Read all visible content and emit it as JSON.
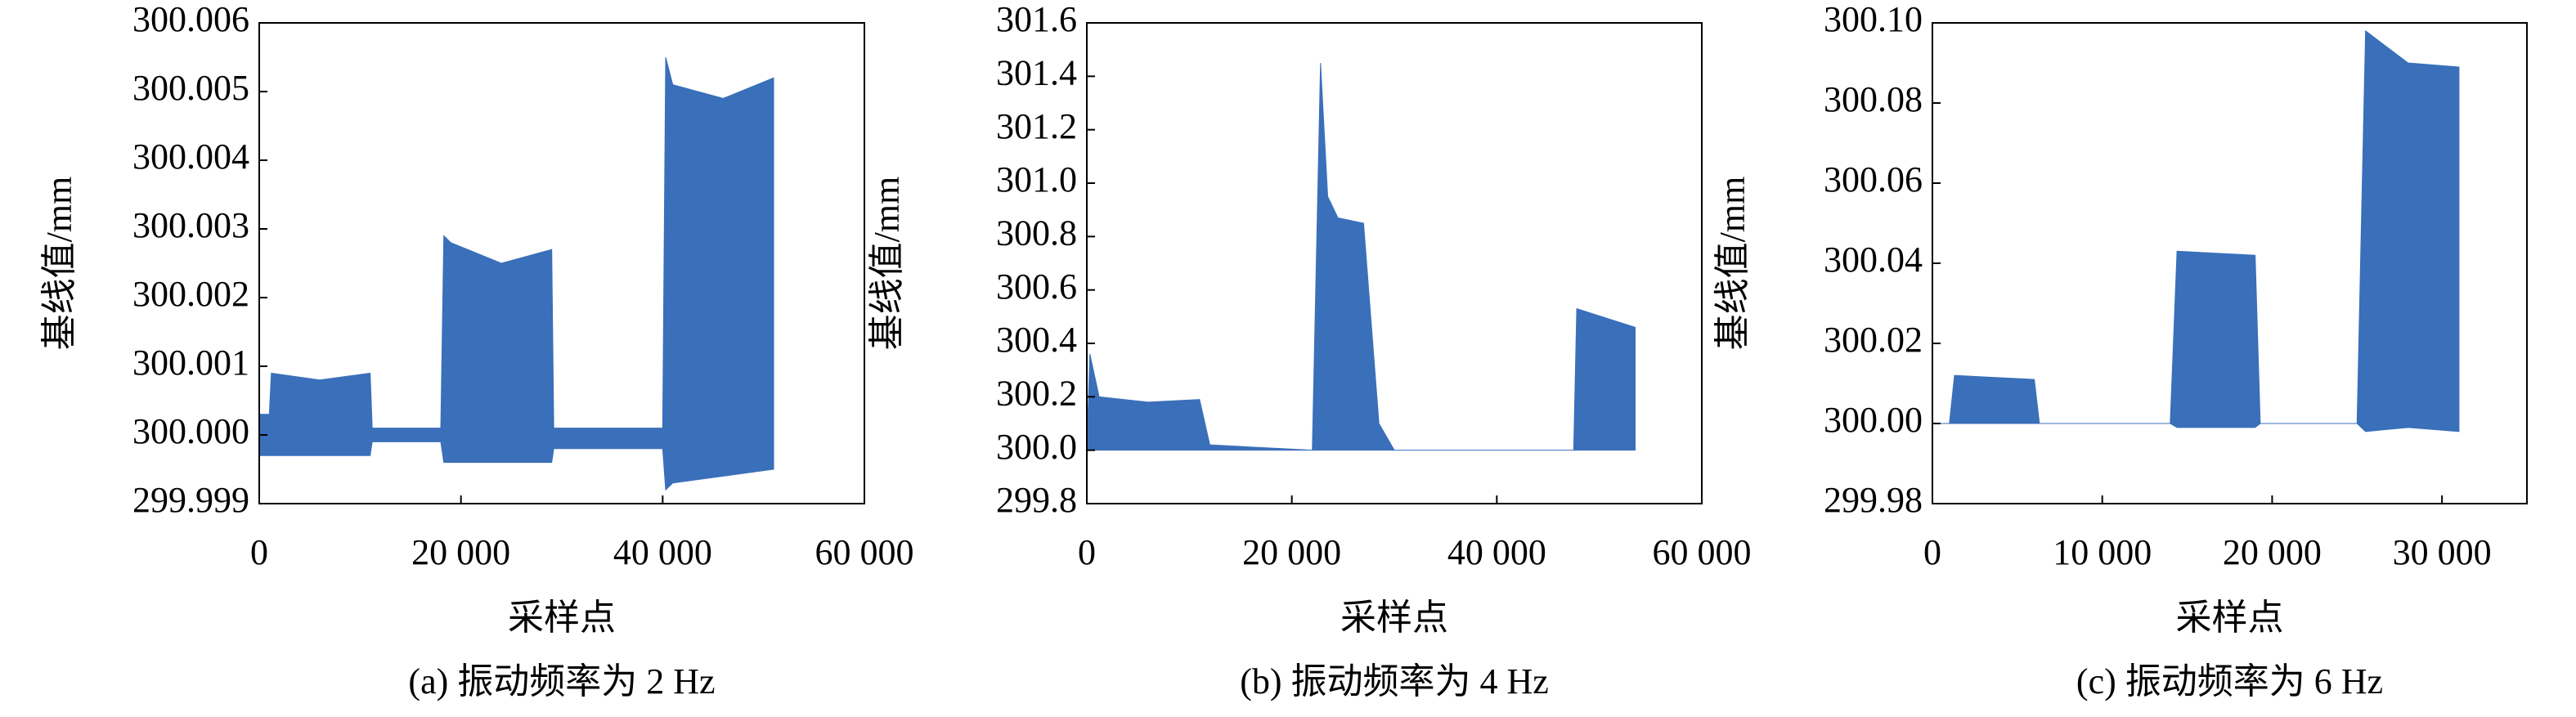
{
  "chart_data": [
    {
      "type": "area",
      "caption": "(a) 振动频率为 2 Hz",
      "xlabel": "采样点",
      "ylabel": "基线值/mm",
      "color": "#3a6fba",
      "xlim": [
        0,
        60000
      ],
      "xticks": [
        0,
        {
          "value": 20000,
          "label": "20 000"
        },
        {
          "value": 40000,
          "label": "40 000"
        },
        {
          "value": 60000,
          "label": "60 000"
        }
      ],
      "ylim": [
        299.999,
        300.006
      ],
      "yticks": [
        299.999,
        {
          "value": 300,
          "label": "300.000"
        },
        300.001,
        300.002,
        300.003,
        300.004,
        300.005,
        300.006
      ],
      "x": [
        0,
        1000,
        1200,
        6000,
        11000,
        11200,
        18000,
        18300,
        19000,
        24000,
        29000,
        29200,
        40000,
        40300,
        41000,
        46000,
        51000
      ],
      "upper": [
        300.0003,
        300.0003,
        300.0009,
        300.0008,
        300.0009,
        300.0001,
        300.0001,
        300.0029,
        300.0028,
        300.0025,
        300.0027,
        300.0001,
        300.0001,
        300.0055,
        300.0051,
        300.0049,
        300.0052
      ],
      "lower": [
        299.9997,
        299.9997,
        299.9997,
        299.9997,
        299.9997,
        299.9999,
        299.9999,
        299.9996,
        299.9996,
        299.9996,
        299.9996,
        299.9998,
        299.9998,
        299.9992,
        299.9993,
        299.9994,
        299.9995
      ]
    },
    {
      "type": "area",
      "caption": "(b) 振动频率为 4 Hz",
      "xlabel": "采样点",
      "ylabel": "基线值/mm",
      "color": "#3a6fba",
      "xlim": [
        0,
        60000
      ],
      "xticks": [
        0,
        {
          "value": 20000,
          "label": "20 000"
        },
        {
          "value": 40000,
          "label": "40 000"
        },
        {
          "value": 60000,
          "label": "60 000"
        }
      ],
      "ylim": [
        299.8,
        301.6
      ],
      "yticks": [
        299.8,
        {
          "value": 300,
          "label": "300.0"
        },
        300.2,
        300.4,
        300.6,
        300.8,
        {
          "value": 301,
          "label": "301.0"
        },
        301.2,
        301.4,
        301.6
      ],
      "x": [
        0,
        300,
        1200,
        6000,
        11000,
        12000,
        22000,
        22800,
        23500,
        24500,
        27000,
        28500,
        30000,
        47500,
        47800,
        53500
      ],
      "upper": [
        300.0,
        300.36,
        300.2,
        300.18,
        300.19,
        300.02,
        300.0,
        301.45,
        300.95,
        300.87,
        300.85,
        300.1,
        300.0,
        300.0,
        300.53,
        300.46
      ],
      "lower": [
        300.0,
        300.0,
        300.0,
        300.0,
        300.0,
        300.0,
        300.0,
        300.0,
        300.0,
        300.0,
        300.0,
        300.0,
        300.0,
        300.0,
        300.0,
        300.0
      ]
    },
    {
      "type": "area",
      "caption": "(c) 振动频率为 6 Hz",
      "xlabel": "采样点",
      "ylabel": "基线值/mm",
      "color": "#3a6fba",
      "xlim": [
        0,
        35000
      ],
      "xticks": [
        0,
        {
          "value": 10000,
          "label": "10 000"
        },
        {
          "value": 20000,
          "label": "20 000"
        },
        {
          "value": 30000,
          "label": "30 000"
        }
      ],
      "ylim": [
        299.98,
        300.1
      ],
      "yticks": [
        299.98,
        {
          "value": 300,
          "label": "300.00"
        },
        300.02,
        300.04,
        300.06,
        300.08,
        {
          "value": 300.1,
          "label": "300.10"
        }
      ],
      "x": [
        0,
        1000,
        1300,
        6000,
        6300,
        14000,
        14400,
        19000,
        19300,
        25000,
        25500,
        28000,
        31000
      ],
      "upper": [
        300.0,
        300.0,
        300.012,
        300.011,
        300.0,
        300.0,
        300.043,
        300.042,
        300.0,
        300.0,
        300.098,
        300.09,
        300.089
      ],
      "lower": [
        300.0,
        300.0,
        300.0,
        300.0,
        300.0,
        300.0,
        299.999,
        299.999,
        300.0,
        300.0,
        299.998,
        299.999,
        299.998
      ]
    }
  ]
}
